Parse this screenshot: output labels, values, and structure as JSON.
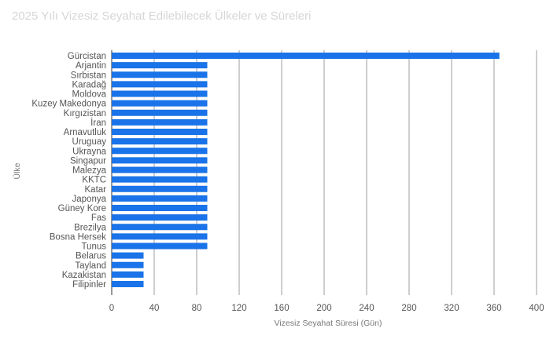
{
  "chart_data": {
    "type": "bar",
    "orientation": "horizontal",
    "title": "2025 Yılı Vizesiz Seyahat Edilebilecek Ülkeler ve Süreleri",
    "xlabel": "Vizesiz Seyahat Süresi (Gün)",
    "ylabel": "Ülke",
    "categories": [
      "Gürcistan",
      "Arjantin",
      "Sırbistan",
      "Karadağ",
      "Moldova",
      "Kuzey Makedonya",
      "Kırgızistan",
      "İran",
      "Arnavutluk",
      "Uruguay",
      "Ukrayna",
      "Singapur",
      "Malezya",
      "KKTC",
      "Katar",
      "Japonya",
      "Güney Kore",
      "Fas",
      "Brezilya",
      "Bosna Hersek",
      "Tunus",
      "Belarus",
      "Tayland",
      "Kazakistan",
      "Filipinler"
    ],
    "values": [
      365,
      90,
      90,
      90,
      90,
      90,
      90,
      90,
      90,
      90,
      90,
      90,
      90,
      90,
      90,
      90,
      90,
      90,
      90,
      90,
      90,
      30,
      30,
      30,
      30
    ],
    "xlim": [
      0,
      400
    ],
    "xticks": [
      0,
      40,
      80,
      120,
      160,
      200,
      240,
      280,
      320,
      360,
      400
    ],
    "grid": true,
    "legend": "none",
    "bar_color": "#1a73e8"
  }
}
